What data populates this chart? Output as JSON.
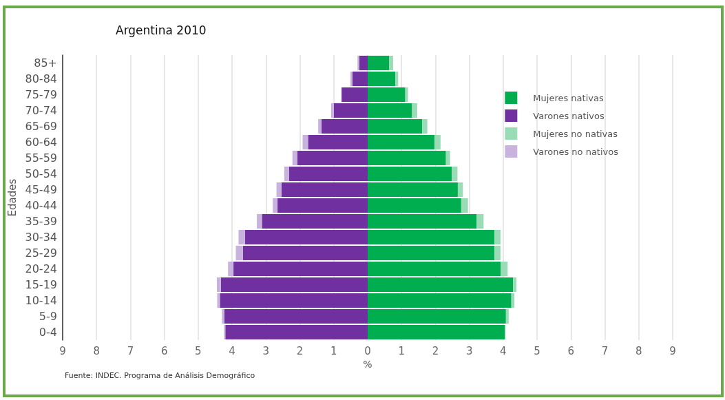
{
  "chart_data": {
    "type": "bar",
    "orientation": "horizontal",
    "stacked": true,
    "title": "Argentina 2010",
    "xlabel": "%",
    "ylabel": "Edades",
    "annotations": [
      "Fuente: INDEC. Programa de Análisis Demográfico"
    ],
    "categories": [
      "85+",
      "80-84",
      "75-79",
      "70-74",
      "65-69",
      "60-64",
      "55-59",
      "50-54",
      "45-49",
      "40-44",
      "35-39",
      "30-34",
      "25-29",
      "20-24",
      "15-19",
      "10-14",
      "5-9",
      "0-4"
    ],
    "series": [
      {
        "name": "Mujeres nativas",
        "color": "#00ad4f",
        "values": [
          0.63,
          0.82,
          1.11,
          1.31,
          1.61,
          1.97,
          2.31,
          2.48,
          2.66,
          2.76,
          3.21,
          3.74,
          3.74,
          3.93,
          4.29,
          4.24,
          4.08,
          4.05
        ]
      },
      {
        "name": "Varones nativos",
        "color": "#7030a0",
        "values": [
          -0.25,
          -0.45,
          -0.77,
          -1.0,
          -1.36,
          -1.76,
          -2.08,
          -2.32,
          -2.54,
          -2.66,
          -3.12,
          -3.62,
          -3.68,
          -3.96,
          -4.33,
          -4.36,
          -4.23,
          -4.2
        ]
      },
      {
        "name": "Mujeres no nativas",
        "color": "#99dcb5",
        "values": [
          0.12,
          0.08,
          0.08,
          0.15,
          0.15,
          0.18,
          0.12,
          0.17,
          0.15,
          0.2,
          0.21,
          0.18,
          0.18,
          0.2,
          0.1,
          0.09,
          0.08,
          0.02
        ]
      },
      {
        "name": "Varones no nativos",
        "color": "#c9b3de",
        "values": [
          -0.05,
          -0.06,
          null,
          -0.08,
          -0.1,
          -0.16,
          -0.14,
          -0.14,
          -0.15,
          -0.14,
          -0.15,
          -0.19,
          -0.21,
          -0.16,
          -0.12,
          -0.08,
          -0.07,
          -0.04
        ]
      }
    ],
    "xlim": [
      -9,
      9
    ],
    "xticks": [
      {
        "value": -9,
        "label": "9"
      },
      {
        "value": -8,
        "label": "8"
      },
      {
        "value": -7,
        "label": "7"
      },
      {
        "value": -6,
        "label": "6"
      },
      {
        "value": -5,
        "label": "5"
      },
      {
        "value": -4,
        "label": "4"
      },
      {
        "value": -3,
        "label": "3"
      },
      {
        "value": -2,
        "label": "2"
      },
      {
        "value": -1,
        "label": "1"
      },
      0,
      1,
      2,
      3,
      4,
      5,
      6,
      7,
      8,
      9
    ],
    "grid": "x",
    "legend": "top right"
  }
}
